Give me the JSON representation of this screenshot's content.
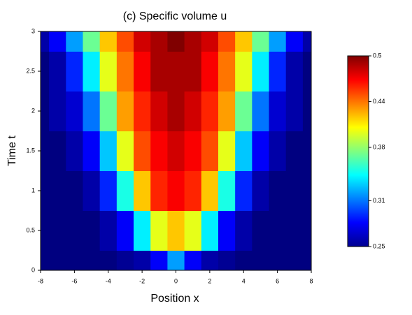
{
  "chart_data": {
    "type": "heatmap",
    "title": "(c) Specific volume u",
    "x_label": "Position x",
    "y_label": "Time t",
    "x": [
      -8,
      -7,
      -6,
      -5,
      -4,
      -3,
      -2,
      -1,
      0,
      1,
      2,
      3,
      4,
      5,
      6,
      7,
      8
    ],
    "y": [
      0,
      0.5,
      1,
      1.5,
      2,
      2.5,
      3
    ],
    "z": [
      [
        0.25,
        0.25,
        0.25,
        0.25,
        0.25,
        0.255,
        0.26,
        0.28,
        0.32,
        0.28,
        0.26,
        0.255,
        0.25,
        0.25,
        0.25,
        0.25,
        0.25
      ],
      [
        0.25,
        0.25,
        0.25,
        0.25,
        0.26,
        0.28,
        0.34,
        0.4,
        0.42,
        0.4,
        0.34,
        0.28,
        0.26,
        0.25,
        0.25,
        0.25,
        0.25
      ],
      [
        0.25,
        0.25,
        0.25,
        0.26,
        0.29,
        0.35,
        0.42,
        0.46,
        0.47,
        0.46,
        0.42,
        0.35,
        0.29,
        0.26,
        0.25,
        0.25,
        0.25
      ],
      [
        0.25,
        0.25,
        0.26,
        0.28,
        0.33,
        0.4,
        0.45,
        0.47,
        0.48,
        0.47,
        0.45,
        0.4,
        0.33,
        0.28,
        0.26,
        0.25,
        0.25
      ],
      [
        0.25,
        0.26,
        0.27,
        0.31,
        0.37,
        0.43,
        0.46,
        0.48,
        0.49,
        0.48,
        0.46,
        0.43,
        0.37,
        0.31,
        0.27,
        0.26,
        0.25
      ],
      [
        0.25,
        0.26,
        0.29,
        0.34,
        0.4,
        0.44,
        0.47,
        0.49,
        0.49,
        0.49,
        0.47,
        0.44,
        0.4,
        0.34,
        0.29,
        0.26,
        0.25
      ],
      [
        0.26,
        0.28,
        0.32,
        0.37,
        0.42,
        0.45,
        0.48,
        0.49,
        0.5,
        0.49,
        0.48,
        0.45,
        0.42,
        0.37,
        0.32,
        0.28,
        0.26
      ]
    ],
    "xlim": [
      -8,
      8
    ],
    "ylim": [
      0,
      3
    ],
    "xticks": [
      -8,
      -6,
      -4,
      -2,
      0,
      2,
      4,
      6,
      8
    ],
    "yticks": [
      0,
      0.5,
      1,
      1.5,
      2,
      2.5,
      3
    ],
    "colormap": "jet",
    "zlim": [
      0.25,
      0.5
    ],
    "zticks": [
      0.25,
      0.31,
      0.38,
      0.44,
      0.5
    ]
  }
}
